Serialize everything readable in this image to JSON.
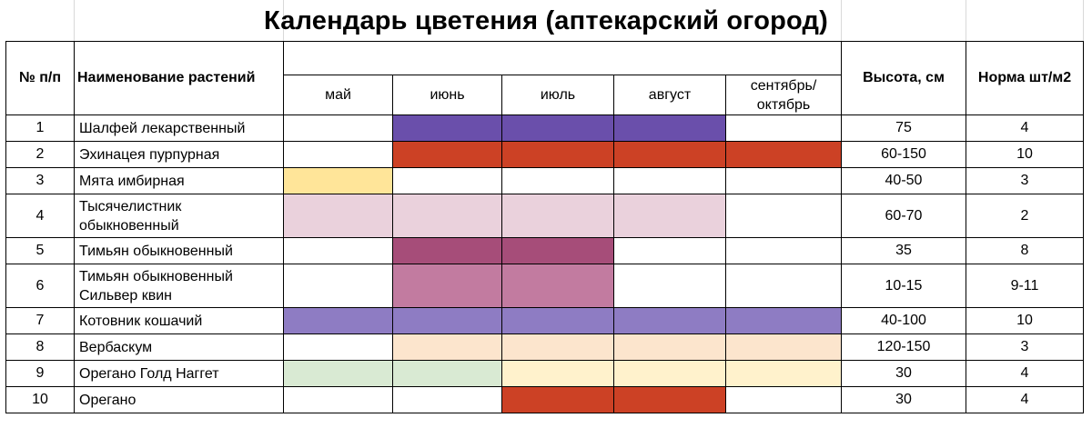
{
  "title": "Календарь цветения (аптекарский огород)",
  "headers": {
    "num": "№ п/п",
    "name": "Наименование растений",
    "height": "Высота, см",
    "norm": "Норма шт/м2",
    "months": [
      "май",
      "июнь",
      "июль",
      "август",
      "сентябрь/\nоктябрь"
    ]
  },
  "colors": {
    "purple": "#6a4fab",
    "red": "#cc4125",
    "yellow": "#ffe599",
    "pink": "#ead1dc",
    "plum": "#a64d79",
    "mauve": "#c27ba0",
    "lavender": "#8e7cc3",
    "peach": "#fce5cd",
    "green": "#d9ead3",
    "cream": "#fff2cc"
  },
  "rows": [
    {
      "num": "1",
      "name": "Шалфей лекарственный",
      "height": "75",
      "norm": "4",
      "bloom": [
        null,
        "purple",
        "purple",
        "purple",
        null
      ]
    },
    {
      "num": "2",
      "name": "Эхинацея пурпурная",
      "height": "60-150",
      "norm": "10",
      "bloom": [
        null,
        "red",
        "red",
        "red",
        "red"
      ]
    },
    {
      "num": "3",
      "name": "Мята имбирная",
      "height": "40-50",
      "norm": "3",
      "bloom": [
        "yellow",
        null,
        null,
        null,
        null
      ]
    },
    {
      "num": "4",
      "name": "Тысячелистник\nобыкновенный",
      "height": "60-70",
      "norm": "2",
      "bloom": [
        "pink",
        "pink",
        "pink",
        "pink",
        null
      ]
    },
    {
      "num": "5",
      "name": "Тимьян обыкновенный",
      "height": "35",
      "norm": "8",
      "bloom": [
        null,
        "plum",
        "plum",
        null,
        null
      ]
    },
    {
      "num": "6",
      "name": "Тимьян обыкновенный\nСильвер квин",
      "height": "10-15",
      "norm": "9-11",
      "bloom": [
        null,
        "mauve",
        "mauve",
        null,
        null
      ]
    },
    {
      "num": "7",
      "name": "Котовник кошачий",
      "height": "40-100",
      "norm": "10",
      "bloom": [
        "lavender",
        "lavender",
        "lavender",
        "lavender",
        "lavender"
      ]
    },
    {
      "num": "8",
      "name": "Вербаскум",
      "height": "120-150",
      "norm": "3",
      "bloom": [
        null,
        "peach",
        "peach",
        "peach",
        "peach"
      ]
    },
    {
      "num": "9",
      "name": "Орегано Голд Наггет",
      "height": "30",
      "norm": "4",
      "bloom": [
        "green",
        "green",
        "cream",
        "cream",
        "cream"
      ]
    },
    {
      "num": "10",
      "name": "Орегано",
      "height": "30",
      "norm": "4",
      "bloom": [
        null,
        null,
        "red",
        "red",
        null
      ]
    }
  ]
}
